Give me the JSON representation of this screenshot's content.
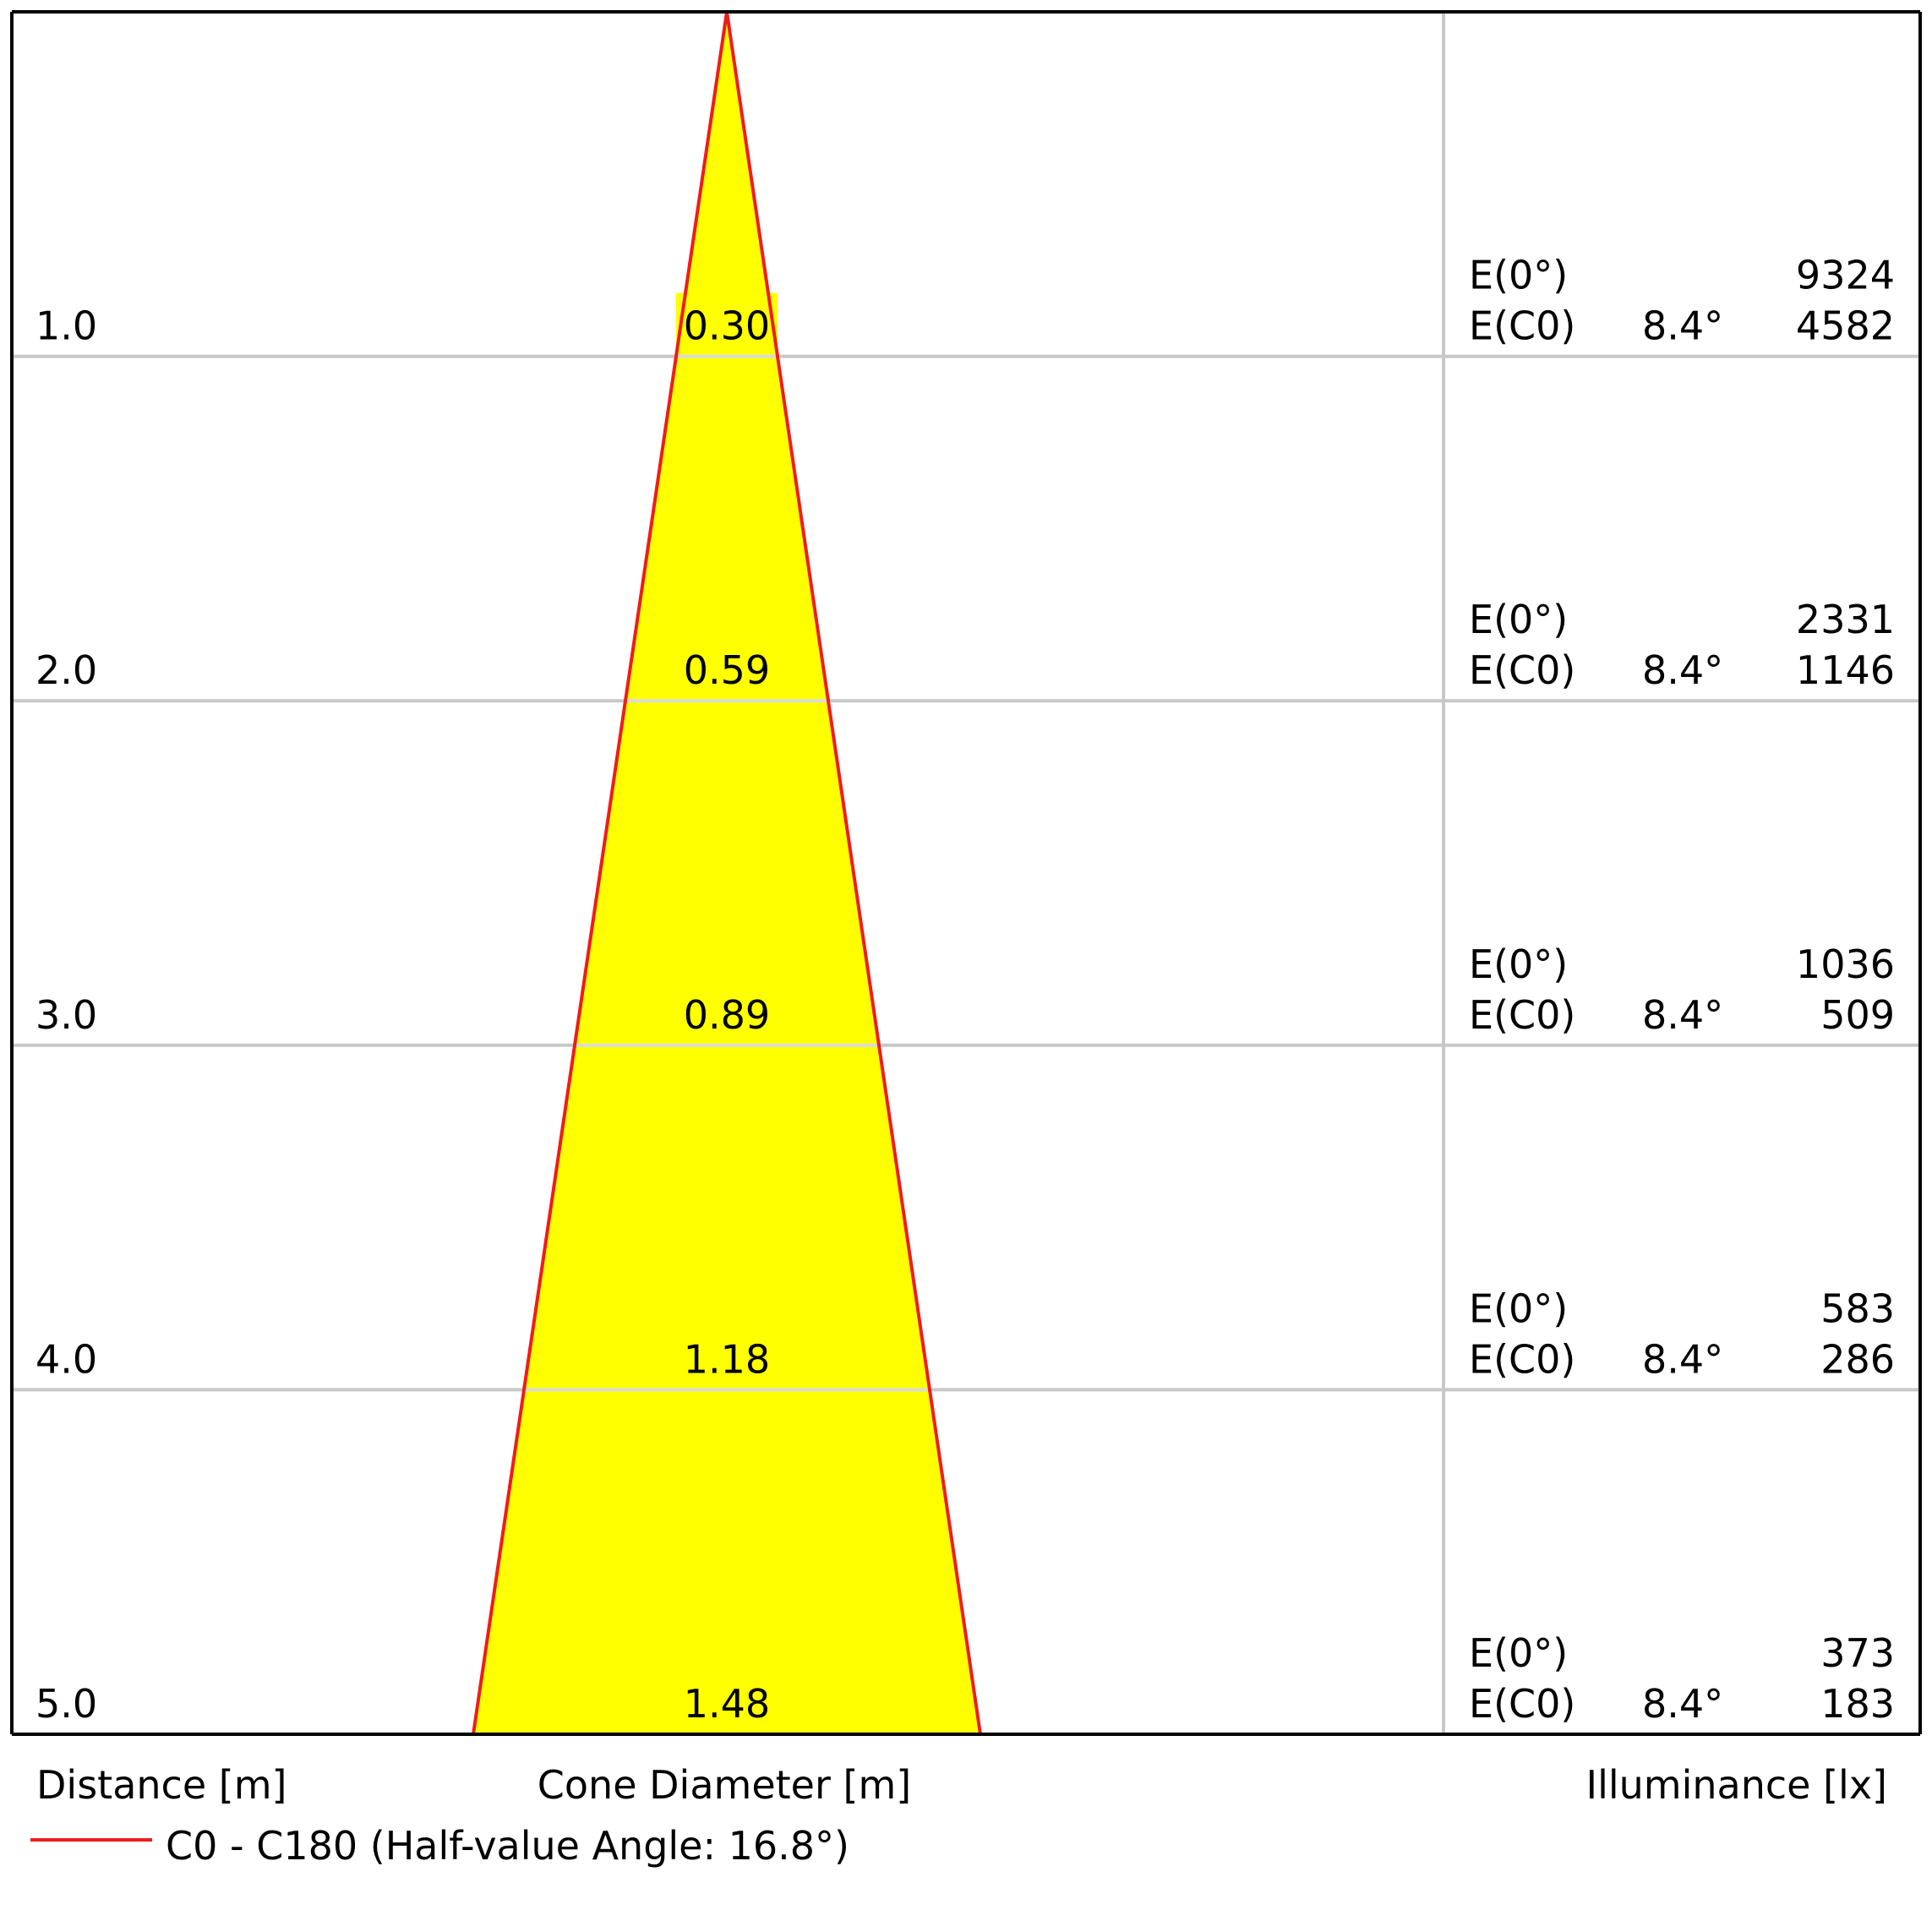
{
  "chart_data": {
    "type": "cone-diagram",
    "distance_label": "Distance [m]",
    "diameter_label": "Cone Diameter [m]",
    "illuminance_label": "Illuminance [lx]",
    "legend": {
      "label": "C0 - C180 (Half-value Angle: 16.8°)",
      "color": "#ee1c1c"
    },
    "half_value_angle_deg": 16.8,
    "fill_color": "#ffff00",
    "rows": [
      {
        "distance": "1.0",
        "diameter": "0.30",
        "e0_label": "E(0°)",
        "e0": "9324",
        "ec0_label": "E(C0)",
        "angle": "8.4°",
        "ec0": "4582"
      },
      {
        "distance": "2.0",
        "diameter": "0.59",
        "e0_label": "E(0°)",
        "e0": "2331",
        "ec0_label": "E(C0)",
        "angle": "8.4°",
        "ec0": "1146"
      },
      {
        "distance": "3.0",
        "diameter": "0.89",
        "e0_label": "E(0°)",
        "e0": "1036",
        "ec0_label": "E(C0)",
        "angle": "8.4°",
        "ec0": "509"
      },
      {
        "distance": "4.0",
        "diameter": "1.18",
        "e0_label": "E(0°)",
        "e0": "583",
        "ec0_label": "E(C0)",
        "angle": "8.4°",
        "ec0": "286"
      },
      {
        "distance": "5.0",
        "diameter": "1.48",
        "e0_label": "E(0°)",
        "e0": "373",
        "ec0_label": "E(C0)",
        "angle": "8.4°",
        "ec0": "183"
      }
    ]
  }
}
